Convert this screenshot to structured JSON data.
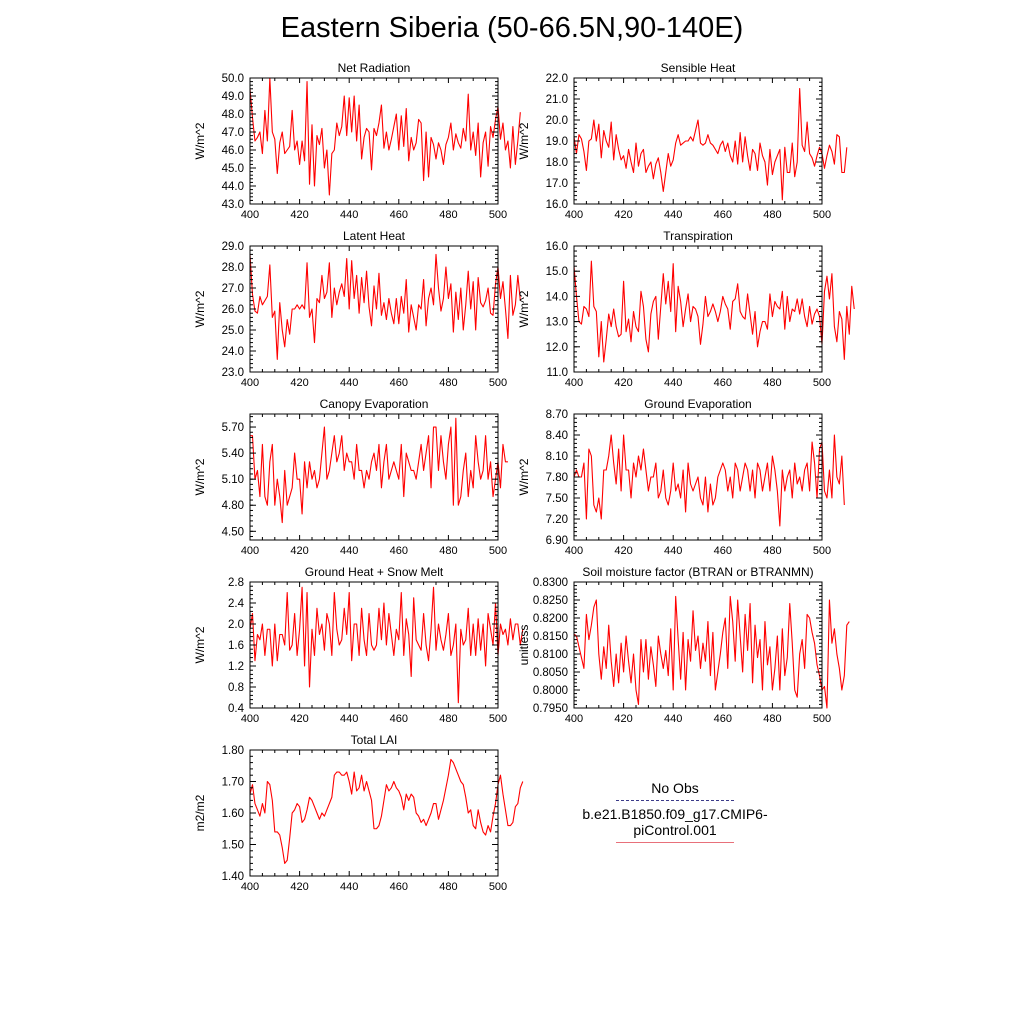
{
  "title": "Eastern Siberia (50-66.5N,90-140E)",
  "legend": {
    "obs_label": "No Obs",
    "model_label": "b.e21.B1850.f09_g17.CMIP6-piControl.001",
    "obs_color": "#3b3b8a",
    "model_color": "#e8707a"
  },
  "line_color": "#ff0000",
  "chart_data": [
    {
      "type": "line",
      "title": "Net Radiation",
      "ylabel": "W/m^2",
      "xlim": [
        400,
        500
      ],
      "ylim": [
        43.0,
        50.0
      ],
      "xticks": [
        400,
        420,
        440,
        460,
        480,
        500
      ],
      "yticks": [
        "43.0",
        "44.0",
        "45.0",
        "46.0",
        "47.0",
        "48.0",
        "49.0",
        "50.0"
      ],
      "ytick_values": [
        43,
        44,
        45,
        46,
        47,
        48,
        49,
        50
      ],
      "x_start": 400,
      "values": [
        49.4,
        47.8,
        46.5,
        46.7,
        47.0,
        45.8,
        48.2,
        46.5,
        50.0,
        47.0,
        46.6,
        44.7,
        46.4,
        47.0,
        45.8,
        46.0,
        46.2,
        48.2,
        46.0,
        46.5,
        45.2,
        46.5,
        45.4,
        49.8,
        44.1,
        47.4,
        44.0,
        46.8,
        46.3,
        47.2,
        45.0,
        46.0,
        43.5,
        45.8,
        46.0,
        47.5,
        46.8,
        47.3,
        49.0,
        46.8,
        48.9,
        47.0,
        49.0,
        46.5,
        48.5,
        45.5,
        46.7,
        47.2,
        47.0,
        44.9,
        47.2,
        46.8,
        47.5,
        48.5,
        46.1,
        47.0,
        46.0,
        46.6,
        47.3,
        48.0,
        46.0,
        47.9,
        46.2,
        48.3,
        45.4,
        46.7,
        46.0,
        46.4,
        47.7,
        47.5,
        44.3,
        47.0,
        44.5,
        46.7,
        46.3,
        45.5,
        46.4,
        46.0,
        45.2,
        46.3,
        46.7,
        47.5,
        46.0,
        46.9,
        46.4,
        46.1,
        47.2,
        46.5,
        49.1,
        46.0,
        47.0,
        45.7,
        47.5,
        44.5,
        46.4,
        47.0,
        45.1,
        47.3,
        46.7,
        47.7,
        48.4,
        46.6,
        47.5,
        46.0,
        46.5,
        45.0,
        47.3,
        45.2,
        46.5,
        48.1
      ]
    },
    {
      "type": "line",
      "title": "Sensible Heat",
      "ylabel": "W/m^2",
      "xlim": [
        400,
        500
      ],
      "ylim": [
        16.0,
        22.0
      ],
      "xticks": [
        400,
        420,
        440,
        460,
        480,
        500
      ],
      "yticks": [
        "16.0",
        "17.0",
        "18.0",
        "19.0",
        "20.0",
        "21.0",
        "22.0"
      ],
      "ytick_values": [
        16,
        17,
        18,
        19,
        20,
        21,
        22
      ],
      "x_start": 400,
      "values": [
        19.2,
        18.4,
        19.3,
        19.1,
        18.5,
        17.6,
        19.0,
        19.1,
        20.0,
        19.0,
        19.8,
        18.2,
        19.5,
        19.0,
        18.7,
        19.9,
        18.1,
        19.3,
        18.6,
        18.1,
        18.3,
        17.7,
        18.6,
        18.0,
        17.5,
        18.9,
        17.8,
        18.4,
        18.6,
        17.5,
        17.8,
        18.0,
        17.2,
        17.9,
        18.2,
        17.5,
        16.6,
        17.5,
        18.4,
        17.8,
        18.1,
        18.9,
        19.3,
        18.8,
        18.9,
        19.0,
        19.0,
        19.2,
        19.0,
        19.5,
        20.0,
        18.9,
        18.8,
        18.9,
        19.3,
        18.9,
        18.8,
        18.6,
        18.4,
        18.8,
        19.0,
        18.5,
        18.9,
        18.3,
        18.0,
        19.0,
        17.9,
        19.4,
        18.0,
        19.2,
        18.3,
        17.6,
        18.6,
        18.4,
        17.6,
        18.9,
        18.3,
        18.0,
        16.9,
        18.6,
        17.4,
        18.0,
        18.3,
        18.6,
        16.2,
        18.7,
        17.5,
        17.5,
        18.9,
        17.3,
        18.0,
        21.5,
        18.8,
        18.5,
        19.9,
        18.4,
        18.2,
        17.8,
        18.3,
        18.7,
        18.4,
        17.7,
        18.3,
        18.8,
        18.5,
        17.9,
        19.3,
        19.2,
        17.5,
        17.5,
        18.7
      ]
    },
    {
      "type": "line",
      "title": "Latent Heat",
      "ylabel": "W/m^2",
      "xlim": [
        400,
        500
      ],
      "ylim": [
        23.0,
        29.0
      ],
      "xticks": [
        400,
        420,
        440,
        460,
        480,
        500
      ],
      "yticks": [
        "23.0",
        "24.0",
        "25.0",
        "26.0",
        "27.0",
        "28.0",
        "29.0"
      ],
      "ytick_values": [
        23,
        24,
        25,
        26,
        27,
        28,
        29
      ],
      "x_start": 400,
      "values": [
        28.6,
        26.7,
        25.9,
        25.8,
        26.6,
        26.2,
        26.4,
        26.6,
        28.1,
        25.6,
        25.9,
        23.6,
        26.3,
        25.0,
        24.2,
        25.5,
        24.8,
        26.0,
        26.0,
        26.2,
        26.0,
        26.2,
        26.0,
        28.2,
        25.6,
        26.0,
        24.4,
        26.5,
        26.3,
        27.6,
        26.5,
        26.8,
        28.2,
        25.6,
        27.0,
        26.2,
        26.8,
        27.2,
        26.6,
        28.4,
        26.0,
        28.3,
        26.5,
        27.6,
        25.8,
        27.5,
        26.3,
        27.8,
        26.1,
        25.2,
        27.1,
        26.0,
        27.7,
        25.7,
        26.3,
        25.5,
        26.5,
        25.8,
        25.3,
        26.5,
        25.3,
        26.6,
        25.8,
        27.4,
        24.9,
        26.2,
        25.6,
        25.0,
        26.2,
        26.0,
        27.4,
        25.2,
        26.5,
        27.0,
        26.2,
        28.6,
        27.0,
        25.9,
        26.5,
        28.0,
        26.5,
        27.2,
        24.9,
        26.8,
        25.5,
        27.0,
        25.0,
        26.2,
        27.8,
        26.0,
        27.3,
        25.0,
        27.5,
        26.3,
        26.1,
        26.4,
        27.0,
        25.8,
        25.7,
        27.2,
        28.0,
        26.5,
        27.3,
        26.0,
        24.6,
        27.6,
        25.7,
        26.2,
        27.6,
        26.4
      ]
    },
    {
      "type": "line",
      "title": "Transpiration",
      "ylabel": "W/m^2",
      "xlim": [
        400,
        500
      ],
      "ylim": [
        11.0,
        16.0
      ],
      "xticks": [
        400,
        420,
        440,
        460,
        480,
        500
      ],
      "yticks": [
        "11.0",
        "12.0",
        "13.0",
        "14.0",
        "15.0",
        "16.0"
      ],
      "ytick_values": [
        11,
        12,
        13,
        14,
        15,
        16
      ],
      "x_start": 400,
      "values": [
        15.2,
        14.0,
        13.0,
        12.9,
        13.6,
        13.5,
        13.2,
        15.4,
        13.6,
        13.4,
        11.6,
        13.0,
        11.4,
        12.3,
        13.3,
        12.8,
        13.5,
        12.8,
        12.4,
        12.5,
        14.6,
        12.6,
        13.1,
        12.2,
        13.4,
        12.8,
        12.6,
        14.2,
        13.6,
        12.3,
        11.8,
        13.3,
        13.8,
        14.0,
        12.3,
        13.6,
        14.9,
        13.7,
        14.6,
        13.4,
        15.3,
        12.6,
        14.4,
        13.8,
        12.8,
        13.5,
        14.1,
        13.0,
        13.6,
        13.5,
        13.2,
        12.1,
        12.9,
        14.0,
        13.2,
        13.4,
        13.7,
        13.4,
        13.0,
        13.4,
        14.0,
        13.7,
        13.5,
        12.7,
        13.8,
        13.9,
        14.5,
        13.4,
        13.2,
        13.1,
        14.1,
        13.3,
        12.5,
        13.4,
        12.0,
        12.6,
        13.0,
        13.0,
        12.7,
        14.1,
        13.2,
        13.8,
        13.6,
        13.5,
        14.2,
        12.7,
        14.0,
        13.0,
        13.5,
        13.4,
        13.9,
        13.3,
        13.9,
        13.2,
        12.8,
        13.6,
        12.9,
        13.3,
        13.5,
        13.2,
        12.1,
        14.2,
        14.8,
        13.9,
        14.9,
        12.8,
        12.2,
        13.4,
        13.1,
        11.5,
        13.6,
        12.5,
        14.4,
        13.5
      ]
    },
    {
      "type": "line",
      "title": "Canopy Evaporation",
      "ylabel": "W/m^2",
      "xlim": [
        400,
        500
      ],
      "ylim": [
        4.4,
        5.85
      ],
      "xticks": [
        400,
        420,
        440,
        460,
        480,
        500
      ],
      "yticks": [
        "4.50",
        "4.80",
        "5.10",
        "5.40",
        "5.70"
      ],
      "ytick_values": [
        4.5,
        4.8,
        5.1,
        5.4,
        5.7
      ],
      "x_start": 400,
      "values": [
        5.6,
        5.6,
        5.1,
        5.2,
        4.9,
        5.5,
        4.9,
        4.8,
        5.3,
        5.5,
        4.8,
        5.1,
        4.9,
        4.6,
        5.2,
        4.8,
        4.9,
        5.0,
        5.4,
        5.1,
        5.1,
        4.7,
        5.3,
        5.0,
        5.3,
        5.1,
        5.2,
        5.0,
        5.1,
        5.4,
        5.7,
        5.1,
        5.2,
        5.4,
        5.6,
        5.3,
        5.4,
        5.6,
        5.2,
        5.4,
        5.3,
        5.3,
        5.1,
        5.5,
        5.2,
        5.2,
        5.0,
        5.2,
        5.1,
        5.3,
        5.4,
        5.2,
        5.5,
        5.0,
        5.3,
        5.5,
        5.1,
        5.2,
        5.3,
        5.2,
        5.1,
        5.5,
        4.9,
        5.4,
        5.3,
        5.2,
        5.2,
        5.1,
        5.3,
        5.5,
        5.2,
        5.4,
        5.6,
        5.0,
        5.7,
        5.7,
        5.2,
        5.6,
        5.3,
        5.1,
        5.5,
        5.7,
        4.8,
        5.8,
        4.8,
        4.9,
        5.2,
        5.4,
        4.9,
        5.2,
        5.0,
        5.6,
        5.3,
        5.1,
        5.2,
        5.6,
        5.1,
        5.3,
        4.9,
        5.1,
        5.3,
        5.0,
        5.5,
        5.3,
        5.3
      ]
    },
    {
      "type": "line",
      "title": "Ground Evaporation",
      "ylabel": "W/m^2",
      "xlim": [
        400,
        500
      ],
      "ylim": [
        6.9,
        8.7
      ],
      "xticks": [
        400,
        420,
        440,
        460,
        480,
        500
      ],
      "yticks": [
        "6.90",
        "7.20",
        "7.50",
        "7.80",
        "8.10",
        "8.40",
        "8.70"
      ],
      "ytick_values": [
        6.9,
        7.2,
        7.5,
        7.8,
        8.1,
        8.4,
        8.7
      ],
      "x_start": 400,
      "values": [
        7.8,
        7.9,
        7.8,
        7.8,
        8.0,
        7.2,
        8.2,
        8.1,
        7.4,
        7.3,
        7.5,
        7.2,
        7.9,
        7.9,
        8.1,
        8.4,
        8.0,
        7.7,
        8.2,
        7.6,
        8.4,
        7.9,
        7.9,
        7.5,
        8.0,
        7.8,
        8.1,
        7.9,
        8.2,
        7.9,
        7.6,
        7.8,
        7.8,
        8.0,
        7.5,
        7.6,
        7.9,
        7.5,
        7.4,
        7.6,
        8.0,
        7.6,
        7.7,
        7.5,
        7.9,
        7.3,
        8.0,
        7.7,
        7.6,
        7.7,
        7.8,
        7.5,
        7.4,
        7.8,
        7.3,
        7.7,
        7.4,
        7.5,
        7.8,
        7.9,
        8.0,
        7.9,
        7.6,
        7.8,
        7.5,
        8.0,
        7.9,
        7.6,
        7.8,
        8.0,
        7.9,
        7.6,
        7.9,
        7.5,
        8.0,
        7.9,
        7.6,
        7.8,
        8.0,
        7.6,
        8.1,
        7.9,
        7.6,
        7.1,
        7.9,
        7.6,
        7.8,
        7.9,
        7.5,
        8.0,
        7.7,
        7.8,
        7.6,
        7.9,
        8.0,
        7.6,
        8.3,
        8.0,
        7.5,
        8.2,
        8.3,
        7.6,
        7.5,
        7.9,
        7.5,
        8.4,
        7.8,
        7.7,
        8.1,
        7.4
      ]
    },
    {
      "type": "line",
      "title": "Ground Heat + Snow Melt",
      "ylabel": "W/m^2",
      "xlim": [
        400,
        500
      ],
      "ylim": [
        0.4,
        2.8
      ],
      "xticks": [
        400,
        420,
        440,
        460,
        480,
        500
      ],
      "yticks": [
        "0.4",
        "0.8",
        "1.2",
        "1.6",
        "2.0",
        "2.4",
        "2.8"
      ],
      "ytick_values": [
        0.4,
        0.8,
        1.2,
        1.6,
        2.0,
        2.4,
        2.8
      ],
      "x_start": 400,
      "values": [
        1.9,
        2.2,
        1.3,
        1.8,
        1.7,
        2.0,
        1.4,
        1.9,
        1.9,
        1.2,
        2.0,
        1.3,
        1.8,
        1.8,
        1.6,
        2.6,
        1.5,
        1.6,
        2.2,
        1.4,
        1.9,
        2.7,
        1.2,
        2.6,
        0.8,
        1.9,
        1.4,
        2.3,
        1.8,
        2.0,
        1.5,
        2.2,
        2.0,
        1.4,
        2.6,
        1.9,
        1.6,
        1.7,
        2.3,
        1.8,
        2.6,
        1.3,
        2.0,
        2.0,
        1.4,
        2.3,
        1.7,
        1.4,
        2.2,
        1.6,
        1.5,
        1.6,
        2.3,
        1.7,
        2.4,
        1.6,
        2.2,
        1.8,
        1.4,
        1.9,
        1.7,
        2.6,
        1.4,
        2.1,
        1.8,
        1.0,
        2.5,
        1.7,
        1.6,
        1.5,
        2.2,
        1.6,
        1.3,
        1.9,
        2.7,
        1.5,
        2.0,
        1.7,
        1.5,
        1.8,
        2.2,
        1.4,
        1.6,
        2.0,
        0.5,
        1.9,
        1.6,
        1.7,
        2.3,
        1.4,
        2.0,
        1.4,
        2.1,
        1.5,
        2.0,
        1.2,
        2.2,
        1.9,
        1.6,
        2.4,
        1.4,
        2.0,
        1.8,
        1.9,
        1.6,
        2.1,
        1.7,
        2.0,
        2.0,
        1.6,
        1.9
      ]
    },
    {
      "type": "line",
      "title": "Soil moisture factor (BTRAN or BTRANMN)",
      "ylabel": "unitless",
      "xlim": [
        400,
        500
      ],
      "ylim": [
        0.795,
        0.83
      ],
      "xticks": [
        400,
        420,
        440,
        460,
        480,
        500
      ],
      "yticks": [
        "0.7950",
        "0.8000",
        "0.8050",
        "0.8100",
        "0.8150",
        "0.8200",
        "0.8250",
        "0.8300"
      ],
      "ytick_values": [
        0.795,
        0.8,
        0.805,
        0.81,
        0.815,
        0.82,
        0.825,
        0.83
      ],
      "x_start": 400,
      "values": [
        0.8155,
        0.815,
        0.812,
        0.809,
        0.806,
        0.821,
        0.814,
        0.818,
        0.823,
        0.825,
        0.81,
        0.803,
        0.812,
        0.806,
        0.818,
        0.808,
        0.801,
        0.81,
        0.802,
        0.813,
        0.805,
        0.815,
        0.808,
        0.802,
        0.81,
        0.8,
        0.796,
        0.814,
        0.805,
        0.814,
        0.803,
        0.812,
        0.807,
        0.801,
        0.815,
        0.81,
        0.806,
        0.811,
        0.804,
        0.817,
        0.8,
        0.826,
        0.814,
        0.803,
        0.816,
        0.8,
        0.814,
        0.808,
        0.822,
        0.811,
        0.815,
        0.806,
        0.813,
        0.808,
        0.819,
        0.804,
        0.816,
        0.8,
        0.805,
        0.81,
        0.816,
        0.82,
        0.806,
        0.826,
        0.819,
        0.808,
        0.825,
        0.815,
        0.805,
        0.821,
        0.811,
        0.824,
        0.802,
        0.818,
        0.809,
        0.814,
        0.8,
        0.819,
        0.807,
        0.812,
        0.8,
        0.806,
        0.815,
        0.8,
        0.817,
        0.804,
        0.809,
        0.824,
        0.813,
        0.8,
        0.798,
        0.81,
        0.814,
        0.806,
        0.821,
        0.82,
        0.816,
        0.813,
        0.807,
        0.804,
        0.8,
        0.801,
        0.795,
        0.825,
        0.813,
        0.817,
        0.81,
        0.806,
        0.8,
        0.804,
        0.818,
        0.819
      ]
    },
    {
      "type": "line",
      "title": "Total LAI",
      "ylabel": "m2/m2",
      "xlim": [
        400,
        500
      ],
      "ylim": [
        1.4,
        1.8
      ],
      "xticks": [
        400,
        420,
        440,
        460,
        480,
        500
      ],
      "yticks": [
        "1.40",
        "1.50",
        "1.60",
        "1.70",
        "1.80"
      ],
      "ytick_values": [
        1.4,
        1.5,
        1.6,
        1.7,
        1.8
      ],
      "x_start": 400,
      "values": [
        1.66,
        1.69,
        1.63,
        1.61,
        1.59,
        1.63,
        1.6,
        1.7,
        1.69,
        1.64,
        1.54,
        1.54,
        1.53,
        1.49,
        1.44,
        1.45,
        1.52,
        1.6,
        1.61,
        1.63,
        1.62,
        1.57,
        1.58,
        1.61,
        1.65,
        1.64,
        1.62,
        1.6,
        1.58,
        1.6,
        1.59,
        1.61,
        1.63,
        1.65,
        1.72,
        1.73,
        1.73,
        1.72,
        1.72,
        1.73,
        1.7,
        1.66,
        1.73,
        1.67,
        1.68,
        1.72,
        1.67,
        1.7,
        1.67,
        1.64,
        1.55,
        1.55,
        1.56,
        1.59,
        1.64,
        1.69,
        1.67,
        1.68,
        1.7,
        1.68,
        1.67,
        1.65,
        1.61,
        1.66,
        1.64,
        1.66,
        1.65,
        1.6,
        1.59,
        1.57,
        1.58,
        1.56,
        1.58,
        1.6,
        1.63,
        1.63,
        1.58,
        1.61,
        1.64,
        1.68,
        1.72,
        1.77,
        1.76,
        1.74,
        1.72,
        1.7,
        1.69,
        1.65,
        1.6,
        1.61,
        1.56,
        1.55,
        1.61,
        1.57,
        1.54,
        1.53,
        1.56,
        1.54,
        1.59,
        1.63,
        1.69,
        1.72,
        1.66,
        1.61,
        1.56,
        1.56,
        1.57,
        1.62,
        1.63,
        1.68,
        1.7
      ]
    }
  ]
}
